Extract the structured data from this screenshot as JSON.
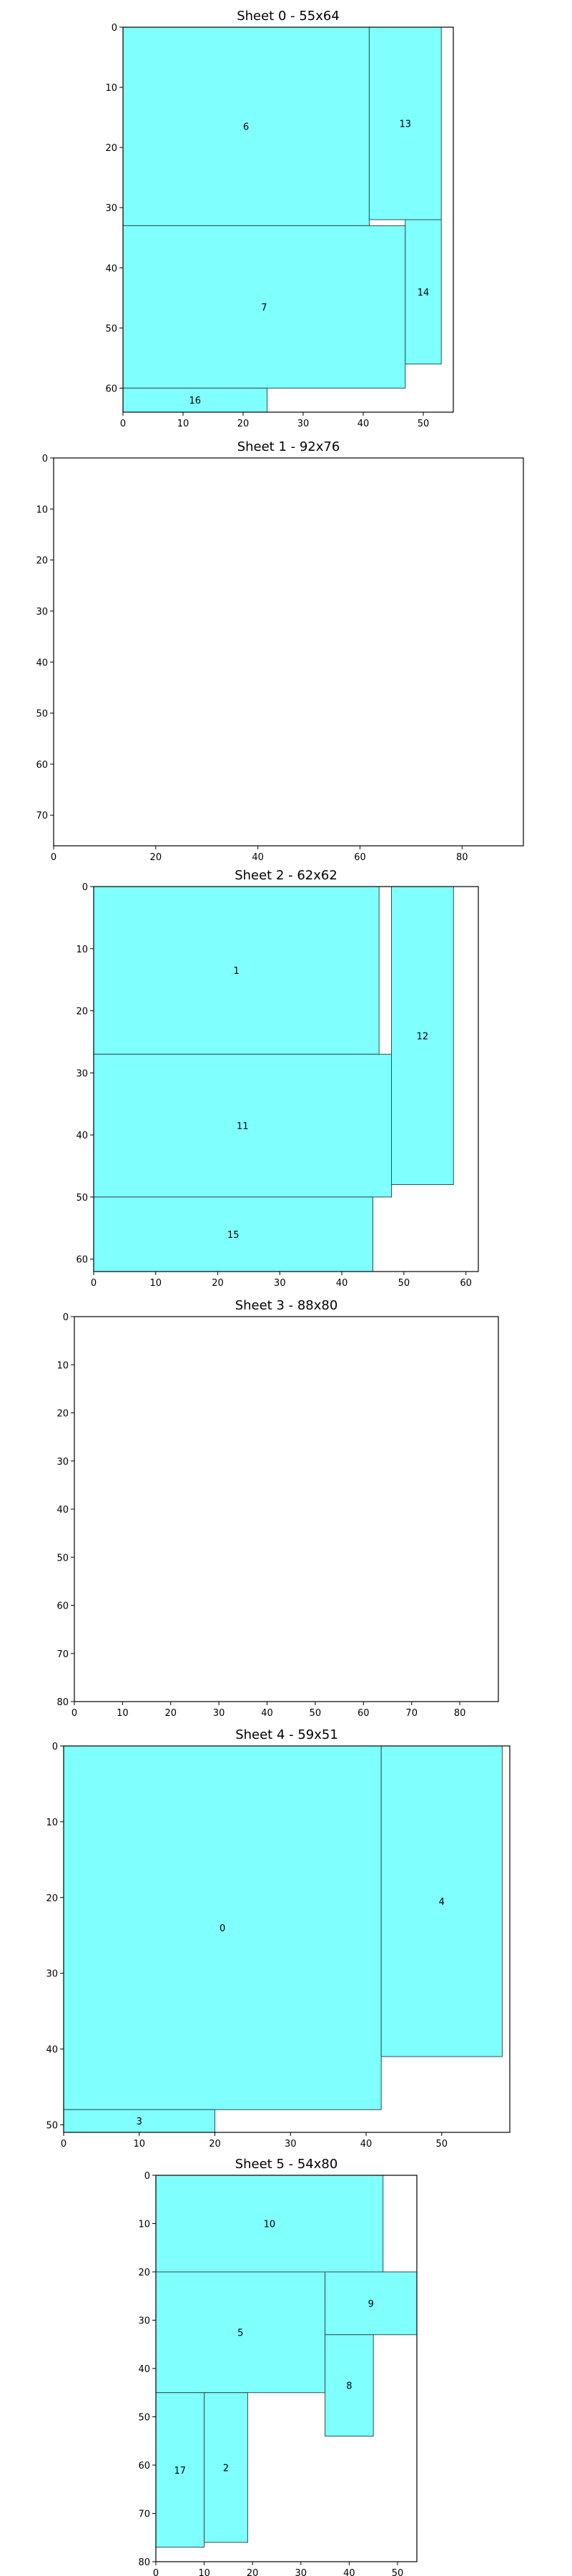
{
  "colors": {
    "piece_fill": "#80ffff",
    "piece_stroke": "#2f4f4f",
    "axis": "#000000",
    "background": "#ffffff"
  },
  "chart_data": [
    {
      "type": "rectangles",
      "title": "Sheet 0 - 55x64",
      "xlim": [
        0,
        55
      ],
      "ylim": [
        64,
        0
      ],
      "xticks": [
        0,
        10,
        20,
        30,
        40,
        50
      ],
      "yticks": [
        0,
        10,
        20,
        30,
        40,
        50,
        60
      ],
      "pieces": [
        {
          "label": "6",
          "x": 0,
          "y": 0,
          "w": 41,
          "h": 33
        },
        {
          "label": "13",
          "x": 41,
          "y": 0,
          "w": 12,
          "h": 32
        },
        {
          "label": "7",
          "x": 0,
          "y": 33,
          "w": 47,
          "h": 27
        },
        {
          "label": "14",
          "x": 47,
          "y": 32,
          "w": 6,
          "h": 24
        },
        {
          "label": "16",
          "x": 0,
          "y": 60,
          "w": 24,
          "h": 4
        }
      ]
    },
    {
      "type": "rectangles",
      "title": "Sheet 1 - 92x76",
      "xlim": [
        0,
        92
      ],
      "ylim": [
        76,
        0
      ],
      "xticks": [
        0,
        20,
        40,
        60,
        80
      ],
      "yticks": [
        0,
        10,
        20,
        30,
        40,
        50,
        60,
        70
      ],
      "pieces": []
    },
    {
      "type": "rectangles",
      "title": "Sheet 2 - 62x62",
      "xlim": [
        0,
        62
      ],
      "ylim": [
        62,
        0
      ],
      "xticks": [
        0,
        10,
        20,
        30,
        40,
        50,
        60
      ],
      "yticks": [
        0,
        10,
        20,
        30,
        40,
        50,
        60
      ],
      "pieces": [
        {
          "label": "1",
          "x": 0,
          "y": 0,
          "w": 46,
          "h": 27
        },
        {
          "label": "12",
          "x": 48,
          "y": 0,
          "w": 10,
          "h": 48
        },
        {
          "label": "11",
          "x": 0,
          "y": 27,
          "w": 48,
          "h": 23
        },
        {
          "label": "15",
          "x": 0,
          "y": 50,
          "w": 45,
          "h": 12
        }
      ]
    },
    {
      "type": "rectangles",
      "title": "Sheet 3 - 88x80",
      "xlim": [
        0,
        88
      ],
      "ylim": [
        80,
        0
      ],
      "xticks": [
        0,
        10,
        20,
        30,
        40,
        50,
        60,
        70,
        80
      ],
      "yticks": [
        0,
        10,
        20,
        30,
        40,
        50,
        60,
        70,
        80
      ],
      "pieces": []
    },
    {
      "type": "rectangles",
      "title": "Sheet 4 - 59x51",
      "xlim": [
        0,
        59
      ],
      "ylim": [
        51,
        0
      ],
      "xticks": [
        0,
        10,
        20,
        30,
        40,
        50
      ],
      "yticks": [
        0,
        10,
        20,
        30,
        40,
        50
      ],
      "pieces": [
        {
          "label": "0",
          "x": 0,
          "y": 0,
          "w": 42,
          "h": 48
        },
        {
          "label": "4",
          "x": 42,
          "y": 0,
          "w": 16,
          "h": 41
        },
        {
          "label": "3",
          "x": 0,
          "y": 48,
          "w": 20,
          "h": 3
        }
      ]
    },
    {
      "type": "rectangles",
      "title": "Sheet 5 - 54x80",
      "xlim": [
        0,
        54
      ],
      "ylim": [
        80,
        0
      ],
      "xticks": [
        0,
        10,
        20,
        30,
        40,
        50
      ],
      "yticks": [
        0,
        10,
        20,
        30,
        40,
        50,
        60,
        70,
        80
      ],
      "pieces": [
        {
          "label": "10",
          "x": 0,
          "y": 0,
          "w": 47,
          "h": 20
        },
        {
          "label": "5",
          "x": 0,
          "y": 20,
          "w": 35,
          "h": 25
        },
        {
          "label": "9",
          "x": 35,
          "y": 20,
          "w": 19,
          "h": 13
        },
        {
          "label": "8",
          "x": 35,
          "y": 33,
          "w": 10,
          "h": 21
        },
        {
          "label": "17",
          "x": 0,
          "y": 45,
          "w": 10,
          "h": 32
        },
        {
          "label": "2",
          "x": 10,
          "y": 45,
          "w": 9,
          "h": 31
        }
      ]
    }
  ]
}
